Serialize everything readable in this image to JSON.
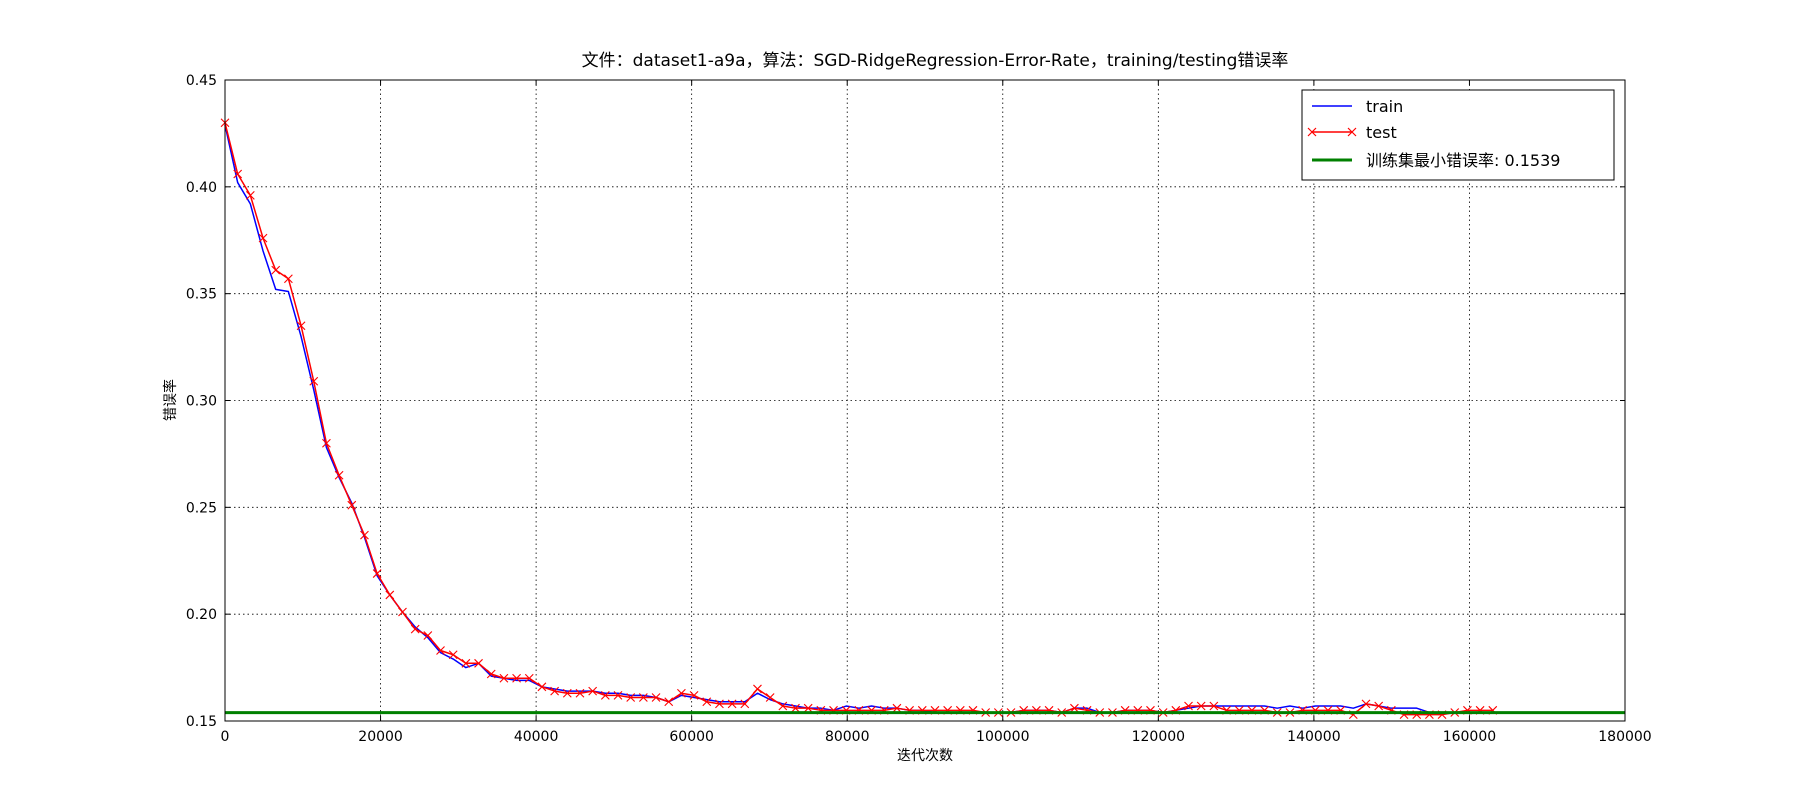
{
  "chart_data": {
    "type": "line",
    "title": "文件：dataset1-a9a，算法：SGD-RidgeRegression-Error-Rate，training/testing错误率",
    "xlabel": "迭代次数",
    "ylabel": "错误率",
    "xlim": [
      0,
      180000
    ],
    "ylim": [
      0.15,
      0.45
    ],
    "xticks": [
      0,
      20000,
      40000,
      60000,
      80000,
      100000,
      120000,
      140000,
      160000,
      180000
    ],
    "xtick_labels": [
      "0",
      "20000",
      "40000",
      "60000",
      "80000",
      "100000",
      "120000",
      "140000",
      "160000",
      "180000"
    ],
    "yticks": [
      0.15,
      0.2,
      0.25,
      0.3,
      0.35,
      0.4,
      0.45
    ],
    "ytick_labels": [
      "0.15",
      "0.20",
      "0.25",
      "0.30",
      "0.35",
      "0.40",
      "0.45"
    ],
    "grid": true,
    "legend_position": "top-right",
    "x": [
      0,
      1630,
      3260,
      4890,
      6520,
      8150,
      9780,
      11410,
      13040,
      14670,
      16300,
      17930,
      19560,
      21190,
      22820,
      24450,
      26080,
      27710,
      29340,
      30970,
      32600,
      34230,
      35860,
      37490,
      39120,
      40750,
      42380,
      44010,
      45640,
      47270,
      48900,
      50530,
      52160,
      53790,
      55420,
      57050,
      58680,
      60310,
      61940,
      63570,
      65200,
      66830,
      68460,
      70090,
      71720,
      73350,
      74980,
      76610,
      78240,
      79870,
      81500,
      83130,
      84760,
      86390,
      88020,
      89650,
      91280,
      92910,
      94540,
      96170,
      97800,
      99430,
      101060,
      102690,
      104320,
      105950,
      107580,
      109210,
      110840,
      112470,
      114100,
      115730,
      117360,
      118990,
      120620,
      122250,
      123880,
      125510,
      127140,
      128770,
      130400,
      132030,
      133660,
      135290,
      136920,
      138550,
      140180,
      141810,
      143440,
      145070,
      146700,
      148330,
      149960,
      151590,
      153220,
      154850,
      156480,
      158110,
      159740,
      161370,
      163000
    ],
    "series": [
      {
        "name": "train",
        "color": "#0000ff",
        "marker": "none",
        "values": [
          0.429,
          0.402,
          0.392,
          0.37,
          0.352,
          0.351,
          0.33,
          0.305,
          0.278,
          0.264,
          0.252,
          0.236,
          0.218,
          0.209,
          0.201,
          0.194,
          0.189,
          0.182,
          0.179,
          0.175,
          0.177,
          0.171,
          0.17,
          0.169,
          0.169,
          0.166,
          0.165,
          0.164,
          0.164,
          0.164,
          0.163,
          0.163,
          0.162,
          0.162,
          0.161,
          0.159,
          0.162,
          0.161,
          0.16,
          0.159,
          0.159,
          0.159,
          0.163,
          0.16,
          0.158,
          0.157,
          0.156,
          0.156,
          0.155,
          0.157,
          0.156,
          0.157,
          0.156,
          0.156,
          0.155,
          0.155,
          0.154,
          0.154,
          0.154,
          0.154,
          0.154,
          0.154,
          0.154,
          0.155,
          0.155,
          0.155,
          0.154,
          0.156,
          0.156,
          0.154,
          0.154,
          0.155,
          0.155,
          0.155,
          0.154,
          0.155,
          0.156,
          0.157,
          0.157,
          0.157,
          0.157,
          0.157,
          0.157,
          0.156,
          0.157,
          0.156,
          0.157,
          0.157,
          0.157,
          0.156,
          0.158,
          0.157,
          0.156,
          0.156,
          0.156,
          0.154,
          0.154,
          0.154,
          0.154,
          0.154,
          0.154
        ]
      },
      {
        "name": "test",
        "color": "#ff0000",
        "marker": "x",
        "values": [
          0.43,
          0.406,
          0.396,
          0.376,
          0.361,
          0.357,
          0.335,
          0.309,
          0.28,
          0.265,
          0.251,
          0.237,
          0.219,
          0.209,
          0.201,
          0.193,
          0.19,
          0.183,
          0.181,
          0.177,
          0.177,
          0.172,
          0.17,
          0.17,
          0.17,
          0.166,
          0.164,
          0.163,
          0.163,
          0.164,
          0.162,
          0.162,
          0.161,
          0.161,
          0.161,
          0.159,
          0.163,
          0.162,
          0.159,
          0.158,
          0.158,
          0.158,
          0.165,
          0.161,
          0.157,
          0.156,
          0.156,
          0.155,
          0.155,
          0.155,
          0.155,
          0.155,
          0.155,
          0.156,
          0.155,
          0.155,
          0.155,
          0.155,
          0.155,
          0.155,
          0.154,
          0.154,
          0.154,
          0.155,
          0.155,
          0.155,
          0.154,
          0.156,
          0.155,
          0.154,
          0.154,
          0.155,
          0.155,
          0.155,
          0.154,
          0.155,
          0.157,
          0.157,
          0.157,
          0.155,
          0.155,
          0.155,
          0.155,
          0.154,
          0.154,
          0.155,
          0.155,
          0.155,
          0.155,
          0.153,
          0.158,
          0.157,
          0.155,
          0.153,
          0.153,
          0.153,
          0.153,
          0.154,
          0.155,
          0.155,
          0.155
        ]
      },
      {
        "name": "训练集最小错误率: 0.1539",
        "color": "#008000",
        "marker": "none",
        "hline": 0.1539
      }
    ]
  }
}
